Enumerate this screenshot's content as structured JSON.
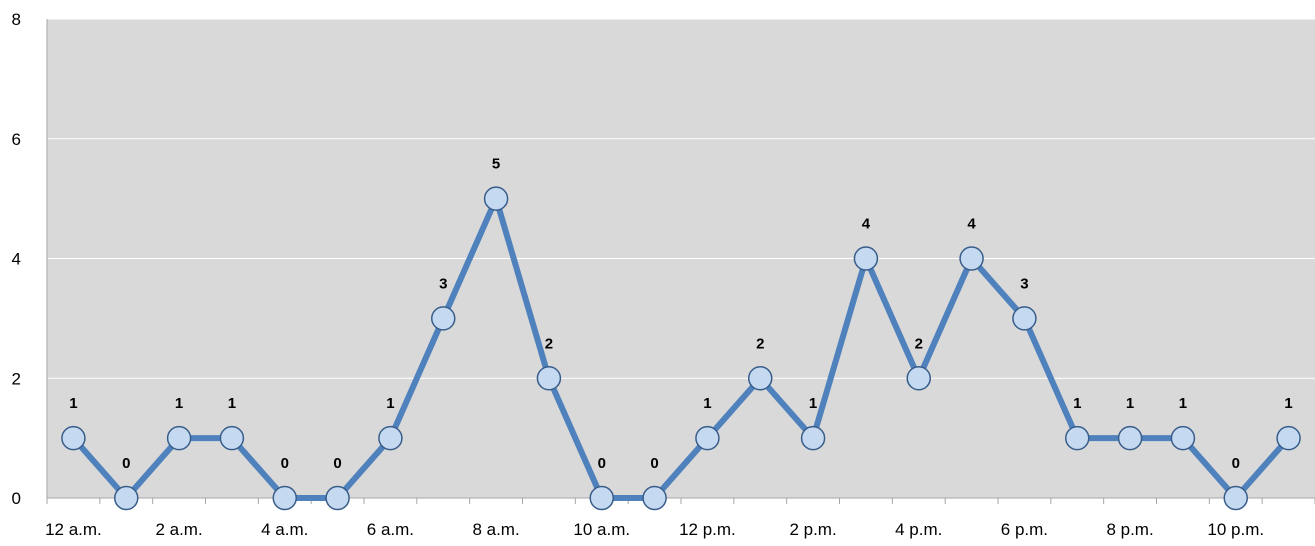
{
  "chart_data": {
    "type": "line",
    "title": "",
    "xlabel": "",
    "ylabel": "",
    "ylim": [
      0,
      8
    ],
    "yticks": [
      "0",
      "2",
      "4",
      "6",
      "8"
    ],
    "x": [
      "12 a.m.",
      "1 a.m.",
      "2 a.m.",
      "3 a.m.",
      "4 a.m.",
      "5 a.m.",
      "6 a.m.",
      "7 a.m.",
      "8 a.m.",
      "9 a.m.",
      "10 a.m.",
      "11 a.m.",
      "12 p.m.",
      "1 p.m.",
      "2 p.m.",
      "3 p.m.",
      "4 p.m.",
      "5 p.m.",
      "6 p.m.",
      "7 p.m.",
      "8 p.m.",
      "9 p.m.",
      "10 p.m.",
      "11 p.m."
    ],
    "x_tick_labels_shown": [
      "12 a.m.",
      "2 a.m.",
      "4 a.m.",
      "6 a.m.",
      "8 a.m.",
      "10 a.m.",
      "12 p.m.",
      "2 p.m.",
      "4 p.m.",
      "6 p.m.",
      "8 p.m.",
      "10 p.m."
    ],
    "series": [
      {
        "values": [
          1,
          0,
          1,
          1,
          0,
          0,
          1,
          3,
          5,
          2,
          0,
          0,
          1,
          2,
          1,
          4,
          2,
          4,
          3,
          1,
          1,
          1,
          0,
          1
        ]
      }
    ],
    "grid": true,
    "legend": "none",
    "colors": {
      "plot_background": "#d9d9d9",
      "line": "#4f81bd",
      "marker_fill": "#c5d9f1",
      "marker_stroke": "#385d8a",
      "gridline": "#ffffff",
      "axis": "#a6a6a6"
    }
  }
}
